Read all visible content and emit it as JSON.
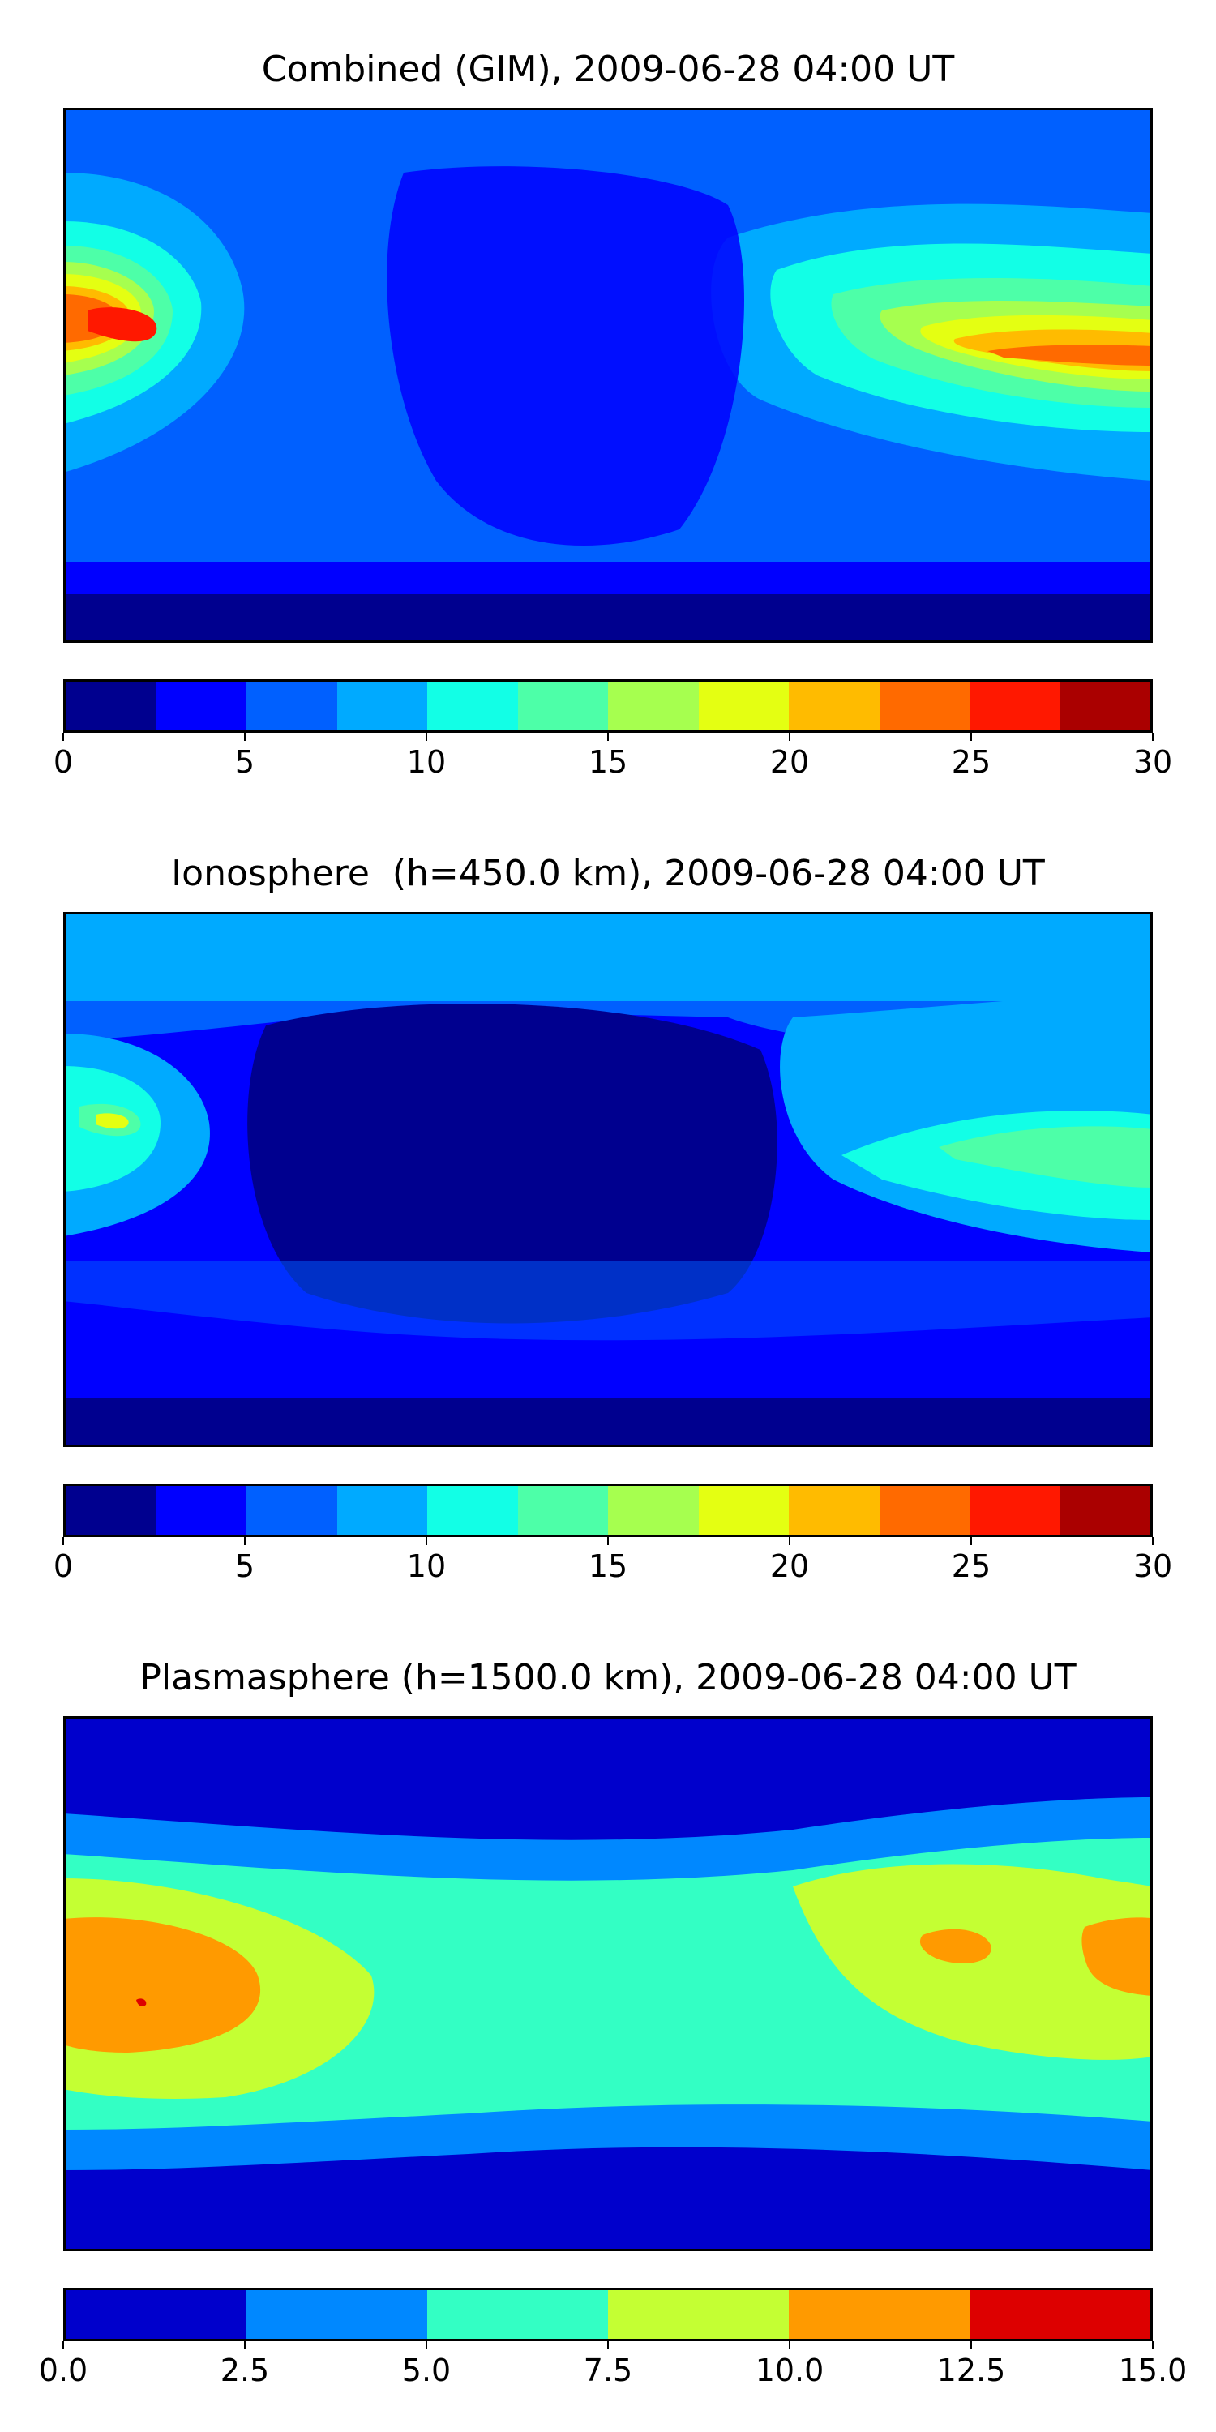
{
  "panels": [
    {
      "id": "combined",
      "title": "Combined (GIM), 2009-06-28 04:00 UT",
      "colorbar": {
        "colors": [
          "#00008f",
          "#0000ff",
          "#0060ff",
          "#00aaff",
          "#12ffe6",
          "#4dffa8",
          "#a6ff4f",
          "#e4ff12",
          "#ffbb00",
          "#ff6a00",
          "#ff1800",
          "#aa0000"
        ],
        "ticks": [
          "0",
          "5",
          "10",
          "15",
          "20",
          "25",
          "30"
        ]
      }
    },
    {
      "id": "ionosphere",
      "title": "Ionosphere  (h=450.0 km), 2009-06-28 04:00 UT",
      "colorbar": {
        "colors": [
          "#00008f",
          "#0000ff",
          "#0060ff",
          "#00aaff",
          "#12ffe6",
          "#4dffa8",
          "#a6ff4f",
          "#e4ff12",
          "#ffbb00",
          "#ff6a00",
          "#ff1800",
          "#aa0000"
        ],
        "ticks": [
          "0",
          "5",
          "10",
          "15",
          "20",
          "25",
          "30"
        ]
      }
    },
    {
      "id": "plasmasphere",
      "title": "Plasmasphere (h=1500.0 km), 2009-06-28 04:00 UT",
      "colorbar": {
        "colors": [
          "#0000cc",
          "#0088ff",
          "#33ffc4",
          "#c4ff33",
          "#ff9a00",
          "#dd0000"
        ],
        "ticks": [
          "0.0",
          "2.5",
          "5.0",
          "7.5",
          "10.0",
          "12.5",
          "15.0"
        ]
      }
    }
  ]
}
